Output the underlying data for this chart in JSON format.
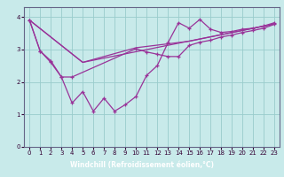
{
  "background_color": "#c8eaea",
  "plot_background_color": "#c8eaea",
  "line_color": "#993399",
  "grid_color": "#99cccc",
  "xlabel": "Windchill (Refroidissement éolien,°C)",
  "xlabel_bg": "#9966aa",
  "xlabel_color": "#ffffff",
  "xlim": [
    -0.5,
    23.5
  ],
  "ylim": [
    0,
    4.3
  ],
  "yticks": [
    0,
    1,
    2,
    3,
    4
  ],
  "xticks": [
    0,
    1,
    2,
    3,
    4,
    5,
    6,
    7,
    8,
    9,
    10,
    11,
    12,
    13,
    14,
    15,
    16,
    17,
    18,
    19,
    20,
    21,
    22,
    23
  ],
  "series1_x": [
    0,
    1,
    2,
    3,
    4,
    5,
    6,
    7,
    8,
    9,
    10,
    11,
    12,
    13,
    14,
    15,
    16,
    17,
    18,
    19,
    20,
    21,
    22,
    23
  ],
  "series1_y": [
    3.9,
    2.95,
    2.6,
    2.15,
    1.35,
    1.7,
    1.1,
    1.5,
    1.1,
    1.3,
    1.55,
    2.2,
    2.5,
    3.2,
    3.82,
    3.65,
    3.92,
    3.62,
    3.52,
    3.55,
    3.62,
    3.65,
    3.72,
    3.82
  ],
  "series2_x": [
    0,
    1,
    2,
    3,
    4,
    10,
    11,
    12,
    13,
    14,
    15,
    16,
    17,
    18,
    19,
    20,
    21,
    22,
    23
  ],
  "series2_y": [
    3.9,
    2.95,
    2.65,
    2.15,
    2.15,
    3.02,
    2.92,
    2.85,
    2.78,
    2.78,
    3.12,
    3.22,
    3.28,
    3.38,
    3.44,
    3.52,
    3.58,
    3.65,
    3.77
  ],
  "series3_x": [
    0,
    5,
    10,
    15,
    23
  ],
  "series3_y": [
    3.9,
    2.6,
    3.05,
    3.25,
    3.78
  ],
  "series4_x": [
    0,
    5,
    23
  ],
  "series4_y": [
    3.9,
    2.6,
    3.78
  ]
}
